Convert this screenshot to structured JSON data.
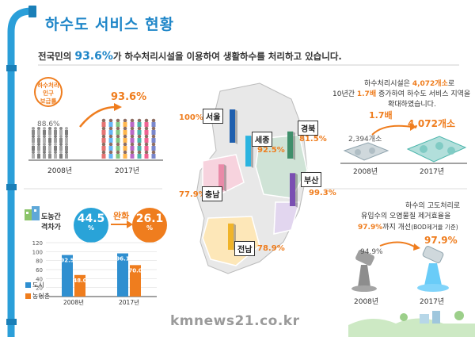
{
  "title": "하수도 서비스 현황",
  "subtitle": {
    "pre": "전국민의 ",
    "highlight": "93.6%",
    "post": "가 하수처리시설을 이용하여 생활하수를 처리하고 있습니다."
  },
  "population": {
    "bubble": "하수처리\n인구\n보급률",
    "val_2008": "88.6%",
    "val_2017": "93.6%",
    "year_2008": "2008년",
    "year_2017": "2017년"
  },
  "gap": {
    "label_line1": "도농간",
    "label_line2": "격차가",
    "val_2008": "44.5",
    "val_2017": "26.1",
    "unit": "%",
    "eased": "완화",
    "color_2008": "#29a3d8",
    "color_2017": "#ef7d1e"
  },
  "chart_data": {
    "type": "bar",
    "categories": [
      "2008년",
      "2017년"
    ],
    "series": [
      {
        "name": "도시",
        "values": [
          92.5,
          96.1
        ],
        "color": "#2f8fd0"
      },
      {
        "name": "농어촌",
        "values": [
          48.0,
          70.0
        ],
        "color": "#ef7d1e"
      }
    ],
    "ylim": [
      0,
      120
    ],
    "yticks": [
      "0",
      "20",
      "40",
      "60",
      "80",
      "100",
      "120"
    ],
    "value_labels": [
      [
        "92.5",
        "96.1"
      ],
      [
        "48.0",
        "70.0"
      ]
    ]
  },
  "regions": [
    {
      "name": "서울",
      "pct": "100",
      "unit": "%",
      "bar_color": "#1f5fae",
      "level": 1.0
    },
    {
      "name": "세종",
      "pct": "92.5",
      "unit": "%",
      "bar_color": "#2bb4e0",
      "level": 0.925
    },
    {
      "name": "경북",
      "pct": "81.5",
      "unit": "%",
      "bar_color": "#3f8f6b",
      "level": 0.815
    },
    {
      "name": "충남",
      "pct": "77.9",
      "unit": "%",
      "bar_color": "#e98aa8",
      "level": 0.779
    },
    {
      "name": "부산",
      "pct": "99.3",
      "unit": "%",
      "bar_color": "#7a4fb2",
      "level": 0.993
    },
    {
      "name": "전남",
      "pct": "78.9",
      "unit": "%",
      "bar_color": "#f0b429",
      "level": 0.789
    }
  ],
  "facilities": {
    "line1_pre": "하수처리시설은 ",
    "line1_hl": "4,072개소",
    "line1_post": "로",
    "line2_pre": "10년간 ",
    "line2_hl": "1.7배",
    "line2_post": " 증가하여 하수도 서비스 지역을",
    "line3": "확대하였습니다.",
    "growth": "1.7배",
    "val_2008": "2,394개소",
    "val_2017": "4,072개소",
    "year_2008": "2008년",
    "year_2017": "2017년"
  },
  "advanced": {
    "line1": "하수의 고도처리로",
    "line2": "유입수의 오염물질 제거효율을",
    "line3_hl": "97.9%",
    "line3_post": "까지 개선",
    "line3_note": "(BOD제거율 기준)",
    "val_2008": "94.9%",
    "val_2017": "97.9%",
    "year_2008": "2008년",
    "year_2017": "2017년"
  },
  "watermark": "kmnews21.co.kr"
}
